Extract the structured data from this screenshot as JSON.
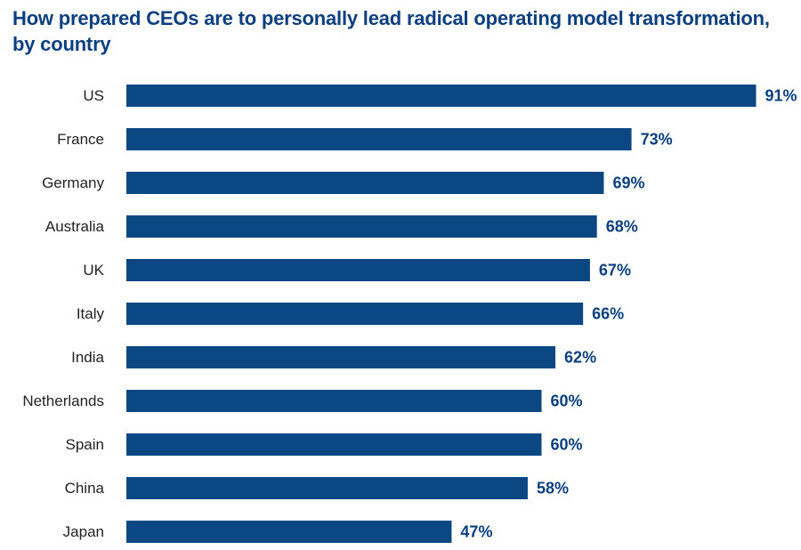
{
  "colors": {
    "bar": "#0b4883",
    "title": "#0b3f7f",
    "value_label": "#0b3f7f"
  },
  "chart_data": {
    "type": "bar",
    "orientation": "horizontal",
    "title": "How prepared CEOs are to personally lead radical operating model transformation, by country",
    "xlabel": "",
    "ylabel": "",
    "grid": false,
    "legend": "none",
    "xlim": [
      0,
      100
    ],
    "categories": [
      "US",
      "France",
      "Germany",
      "Australia",
      "UK",
      "Italy",
      "India",
      "Netherlands",
      "Spain",
      "China",
      "Japan"
    ],
    "values": [
      91,
      73,
      69,
      68,
      67,
      66,
      62,
      60,
      60,
      58,
      47
    ],
    "value_labels": [
      "91%",
      "73%",
      "69%",
      "68%",
      "67%",
      "66%",
      "62%",
      "60%",
      "60%",
      "58%",
      "47%"
    ]
  }
}
